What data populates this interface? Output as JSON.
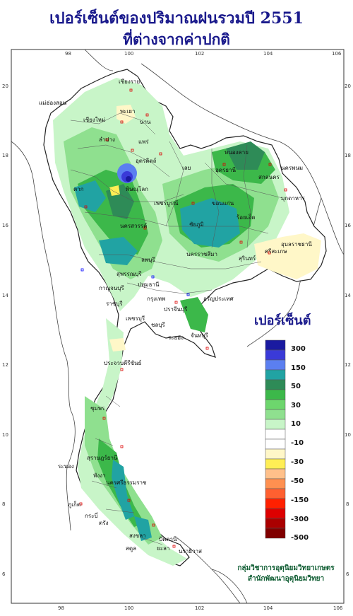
{
  "title_line1": "เปอร์เซ็นต์ของปริมาณฝนรวมปี 2551",
  "title_line2": "ที่ต่างจากค่าปกติ",
  "legend": {
    "title": "เปอร์เซ็นต์",
    "labels": [
      "300",
      "150",
      "50",
      "30",
      "10",
      "-10",
      "-30",
      "-50",
      "-150",
      "-300",
      "-500"
    ],
    "colors": [
      "#1a1aa0",
      "#3a3ad8",
      "#5b7ff0",
      "#21a3a3",
      "#2e8b57",
      "#3cb84a",
      "#8fe08f",
      "#c8f5c8",
      "#ffffff",
      "#ffffff",
      "#fff7c8",
      "#ffee55",
      "#ffc08a",
      "#ff9050",
      "#ff6030",
      "#ff2000",
      "#dd0000",
      "#aa0000",
      "#800000"
    ]
  },
  "axes": {
    "longitude_ticks": [
      "98",
      "100",
      "102",
      "104",
      "106"
    ],
    "latitude_ticks": [
      "20",
      "18",
      "16",
      "14",
      "12",
      "10",
      "8",
      "6"
    ]
  },
  "provinces": [
    "เชียงราย",
    "เชียงใหม่",
    "แม่ฮ่องสอน",
    "น่าน",
    "แพร่",
    "ลำปาง",
    "พะเยา",
    "อุตรดิตถ์",
    "เลย",
    "หนองคาย",
    "อุดรธานี",
    "สกลนคร",
    "นครพนม",
    "ตาก",
    "พิษณุโลก",
    "เพชรบูรณ์",
    "ขอนแก่น",
    "มุกดาหาร",
    "นครสวรรค์",
    "ชัยภูมิ",
    "ร้อยเอ็ด",
    "อุบลราชธานี",
    "ลพบุรี",
    "นครราชสีมา",
    "สุรินทร์",
    "ศรีสะเกษ",
    "กาญจนบุรี",
    "สุพรรณบุรี",
    "ปทุมธานี",
    "ชลบุรี",
    "ระยอง",
    "จันทบุรี",
    "ประจวบคีรีขันธ์",
    "ชุมพร",
    "ระนอง",
    "สุราษฎร์ธานี",
    "นครศรีธรรมราช",
    "ภูเก็ต",
    "กระบี่",
    "ตรัง",
    "สงขลา",
    "ปัตตานี",
    "นราธิวาส",
    "ยะลา",
    "สตูล",
    "พังงา",
    "เพชรบุรี",
    "ราชบุรี",
    "กรุงเทพ",
    "อรัญประเทศ",
    "ปราจีนบุรี"
  ],
  "credit": {
    "line1": "กลุ่มวิชาการอุตุนิยมวิทยาเกษตร",
    "line2": "สำนักพัฒนาอุตุนิยมวิทยา"
  }
}
